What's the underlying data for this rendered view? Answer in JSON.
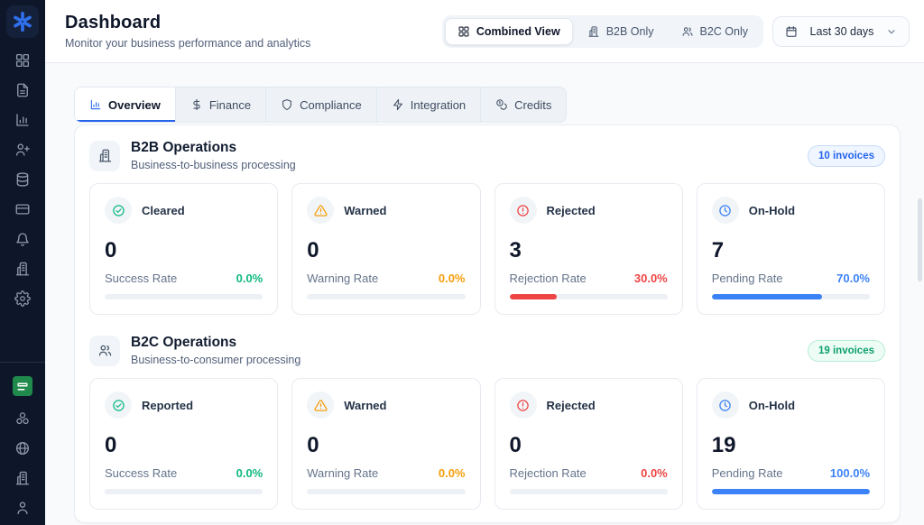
{
  "header": {
    "title": "Dashboard",
    "subtitle": "Monitor your business performance and analytics"
  },
  "view_toggle": {
    "active": "Combined View",
    "options": [
      {
        "label": "Combined View",
        "icon": "grid-icon"
      },
      {
        "label": "B2B Only",
        "icon": "building-icon"
      },
      {
        "label": "B2C Only",
        "icon": "users-icon"
      }
    ]
  },
  "date_filter": {
    "value": "Last 30 days",
    "icon": "calendar-icon"
  },
  "tabs": [
    {
      "label": "Overview",
      "icon": "bar-chart-icon",
      "active": true
    },
    {
      "label": "Finance",
      "icon": "dollar-icon",
      "active": false
    },
    {
      "label": "Compliance",
      "icon": "shield-icon",
      "active": false
    },
    {
      "label": "Integration",
      "icon": "zap-icon",
      "active": false
    },
    {
      "label": "Credits",
      "icon": "coins-icon",
      "active": false
    }
  ],
  "sidebar": {
    "logo_icon": "clover-logo-icon",
    "items": [
      "dashboard-grid-icon",
      "document-icon",
      "analytics-icon",
      "user-plus-icon",
      "database-icon",
      "credit-card-icon",
      "bell-icon",
      "building-icon",
      "gear-icon"
    ],
    "bottom_items": [
      "saudi-flag-icon",
      "cluster-icon",
      "globe-icon",
      "building-icon",
      "user-icon"
    ]
  },
  "sections": {
    "b2b": {
      "title": "B2B Operations",
      "subtitle": "Business-to-business processing",
      "badge": "10 invoices",
      "icon": "building-icon",
      "cards": [
        {
          "label": "Cleared",
          "icon": "check-circle-icon",
          "value": "0",
          "rate_label": "Success Rate",
          "rate": "0.0%",
          "progress": 0,
          "tone": "green"
        },
        {
          "label": "Warned",
          "icon": "alert-triangle-icon",
          "value": "0",
          "rate_label": "Warning Rate",
          "rate": "0.0%",
          "progress": 0,
          "tone": "orange"
        },
        {
          "label": "Rejected",
          "icon": "alert-circle-icon",
          "value": "3",
          "rate_label": "Rejection Rate",
          "rate": "30.0%",
          "progress": 30,
          "tone": "red"
        },
        {
          "label": "On-Hold",
          "icon": "clock-icon",
          "value": "7",
          "rate_label": "Pending Rate",
          "rate": "70.0%",
          "progress": 70,
          "tone": "blue"
        }
      ]
    },
    "b2c": {
      "title": "B2C Operations",
      "subtitle": "Business-to-consumer processing",
      "badge": "19 invoices",
      "icon": "users-icon",
      "cards": [
        {
          "label": "Reported",
          "icon": "check-circle-icon",
          "value": "0",
          "rate_label": "Success Rate",
          "rate": "0.0%",
          "progress": 0,
          "tone": "green"
        },
        {
          "label": "Warned",
          "icon": "alert-triangle-icon",
          "value": "0",
          "rate_label": "Warning Rate",
          "rate": "0.0%",
          "progress": 0,
          "tone": "orange"
        },
        {
          "label": "Rejected",
          "icon": "alert-circle-icon",
          "value": "0",
          "rate_label": "Rejection Rate",
          "rate": "0.0%",
          "progress": 0,
          "tone": "red"
        },
        {
          "label": "On-Hold",
          "icon": "clock-icon",
          "value": "19",
          "rate_label": "Pending Rate",
          "rate": "100.0%",
          "progress": 100,
          "tone": "blue"
        }
      ]
    }
  },
  "colors": {
    "green": "#10b981",
    "orange": "#f59e0b",
    "red": "#ef4444",
    "blue": "#3b82f6",
    "accent": "#2563eb",
    "logo_blue": "#2f6feb",
    "flag_green": "#1f8a4c",
    "sidebar_bg": "#0e1729"
  }
}
